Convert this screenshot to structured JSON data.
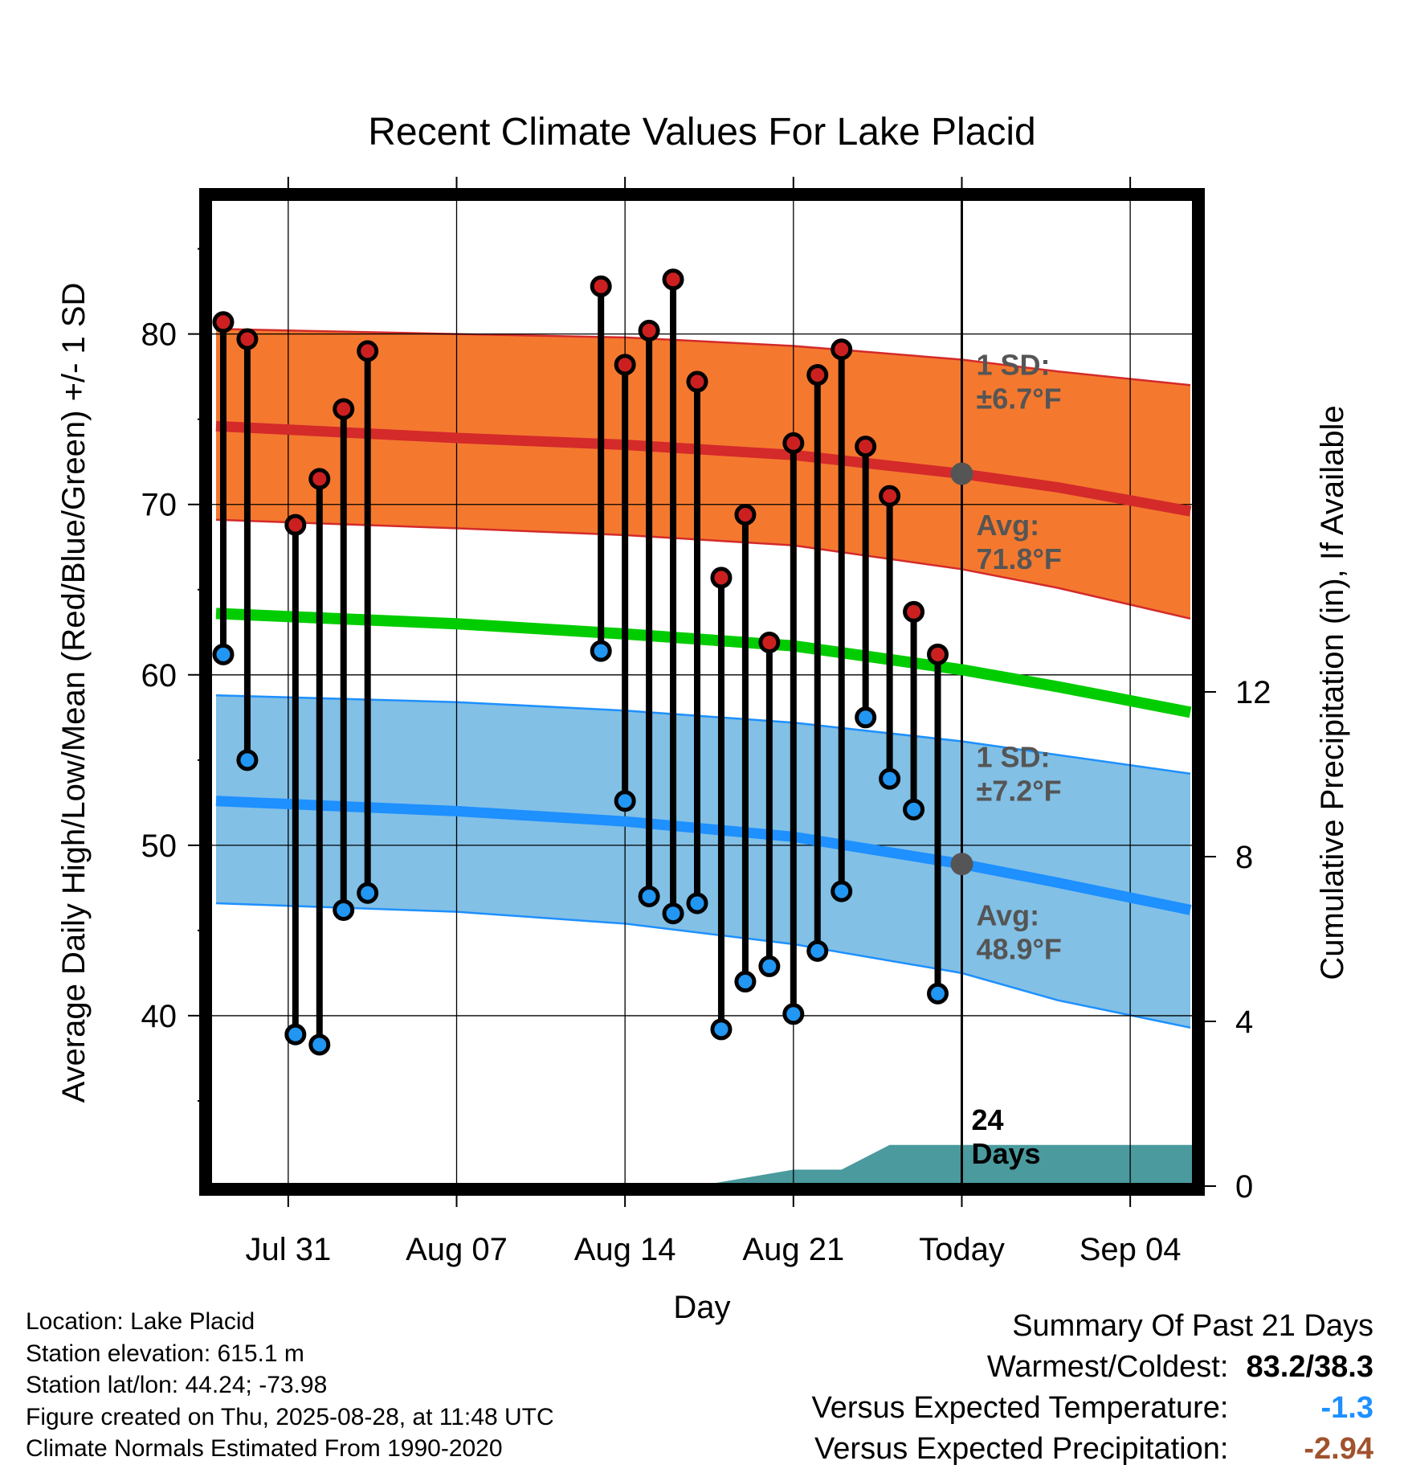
{
  "chart_data": {
    "type": "line",
    "title": "Recent Climate Values For Lake Placid",
    "xlabel": "Day",
    "ylabel": "Average Daily High/Low/Mean (Red/Blue/Green) +/- 1 SD",
    "y2label": "Cumulative Precipitation (in), If Available",
    "x_ticks": [
      "Jul 31",
      "Aug 07",
      "Aug 14",
      "Aug 21",
      "Today",
      "Sep 04"
    ],
    "x_tick_days": [
      -28,
      -21,
      -14,
      -7,
      0,
      7
    ],
    "xlim": [
      -31.3,
      9.7
    ],
    "ylim": [
      30,
      88
    ],
    "y_ticks": [
      40,
      50,
      60,
      70,
      80
    ],
    "y2lim": [
      0,
      24
    ],
    "y2_ticks": [
      0,
      4,
      8,
      12
    ],
    "grid": true,
    "today_label": "24\nDays",
    "normals": {
      "days": [
        -31,
        -21,
        -14,
        -7,
        0,
        4,
        9.5
      ],
      "high_mean": [
        74.6,
        73.9,
        73.5,
        72.9,
        71.8,
        71.0,
        69.6
      ],
      "high_upper": [
        80.3,
        80.0,
        79.8,
        79.3,
        78.5,
        77.8,
        77.0
      ],
      "high_lower": [
        69.1,
        68.6,
        68.2,
        67.6,
        66.2,
        65.1,
        63.3
      ],
      "low_mean": [
        52.6,
        52.0,
        51.4,
        50.5,
        48.9,
        47.8,
        46.2
      ],
      "low_upper": [
        58.8,
        58.4,
        57.9,
        57.2,
        56.1,
        55.3,
        54.2
      ],
      "low_lower": [
        46.6,
        46.1,
        45.4,
        44.2,
        42.5,
        40.9,
        39.3
      ],
      "mean": [
        63.6,
        63.0,
        62.4,
        61.7,
        60.3,
        59.3,
        57.8
      ]
    },
    "high_sd_label": "1 SD:\n±6.7°F",
    "high_avg_label": "Avg:\n71.8°F",
    "low_sd_label": "1 SD:\n±7.2°F",
    "low_avg_label": "Avg:\n48.9°F",
    "today_high_avg": 71.8,
    "today_low_avg": 48.9,
    "series": [
      {
        "name": "High",
        "x": [
          -30.7,
          -29.7,
          -27.7,
          -26.7,
          -25.7,
          -24.7,
          -15.0,
          -14.0,
          -13.0,
          -12.0,
          -11.0,
          -10.0,
          -9.0,
          -8.0,
          -7.0,
          -6.0,
          -5.0,
          -4.0,
          -3.0,
          -2.0,
          -1.0
        ],
        "values": [
          80.7,
          79.7,
          68.8,
          71.5,
          75.6,
          79.0,
          82.8,
          78.2,
          80.2,
          83.2,
          77.2,
          65.7,
          69.4,
          61.9,
          73.6,
          77.6,
          79.1,
          73.4,
          70.5,
          63.7,
          61.2
        ]
      },
      {
        "name": "Low",
        "x": [
          -30.7,
          -29.7,
          -27.7,
          -26.7,
          -25.7,
          -24.7,
          -15.0,
          -14.0,
          -13.0,
          -12.0,
          -11.0,
          -10.0,
          -9.0,
          -8.0,
          -7.0,
          -6.0,
          -5.0,
          -4.0,
          -3.0,
          -2.0,
          -1.0
        ],
        "values": [
          61.2,
          55.0,
          38.9,
          38.3,
          46.2,
          47.2,
          61.4,
          52.6,
          47.0,
          46.0,
          46.6,
          39.2,
          42.0,
          42.9,
          40.1,
          43.8,
          47.3,
          57.5,
          53.9,
          52.1,
          41.3
        ]
      }
    ],
    "precip_cumulative": {
      "x": [
        -31.3,
        -11,
        -7,
        -5,
        -3,
        -1,
        0,
        9.7
      ],
      "values": [
        0,
        0,
        0.4,
        0.4,
        1.0,
        1.0,
        1.0,
        1.0
      ]
    }
  },
  "footer": {
    "location": "Location: Lake Placid",
    "elevation": "Station elevation: 615.1 m",
    "latlon": "Station lat/lon: 44.24; -73.98",
    "created": "Figure created on Thu, 2025-08-28, at 11:48 UTC",
    "normals": "Climate Normals Estimated From 1990-2020"
  },
  "summary": {
    "title": "Summary Of Past 21 Days",
    "warm_cold_label": "Warmest/Coldest:",
    "warm_cold_value": "83.2/38.3",
    "temp_label": "Versus Expected Temperature:",
    "temp_value": "-1.3",
    "temp_color": "#1e90ff",
    "precip_label": "Versus Expected Precipitation:",
    "precip_value": "-2.94",
    "precip_color": "#a0522d"
  },
  "colors": {
    "high_band": "#f4792f",
    "high_line": "#d42a2a",
    "low_band": "#82c0e6",
    "low_line": "#1e90ff",
    "mean_line": "#00cc00",
    "precip": "#4a9a9e",
    "high_point": "#cc2020",
    "low_point": "#2196f3",
    "annotation": "#555555"
  }
}
